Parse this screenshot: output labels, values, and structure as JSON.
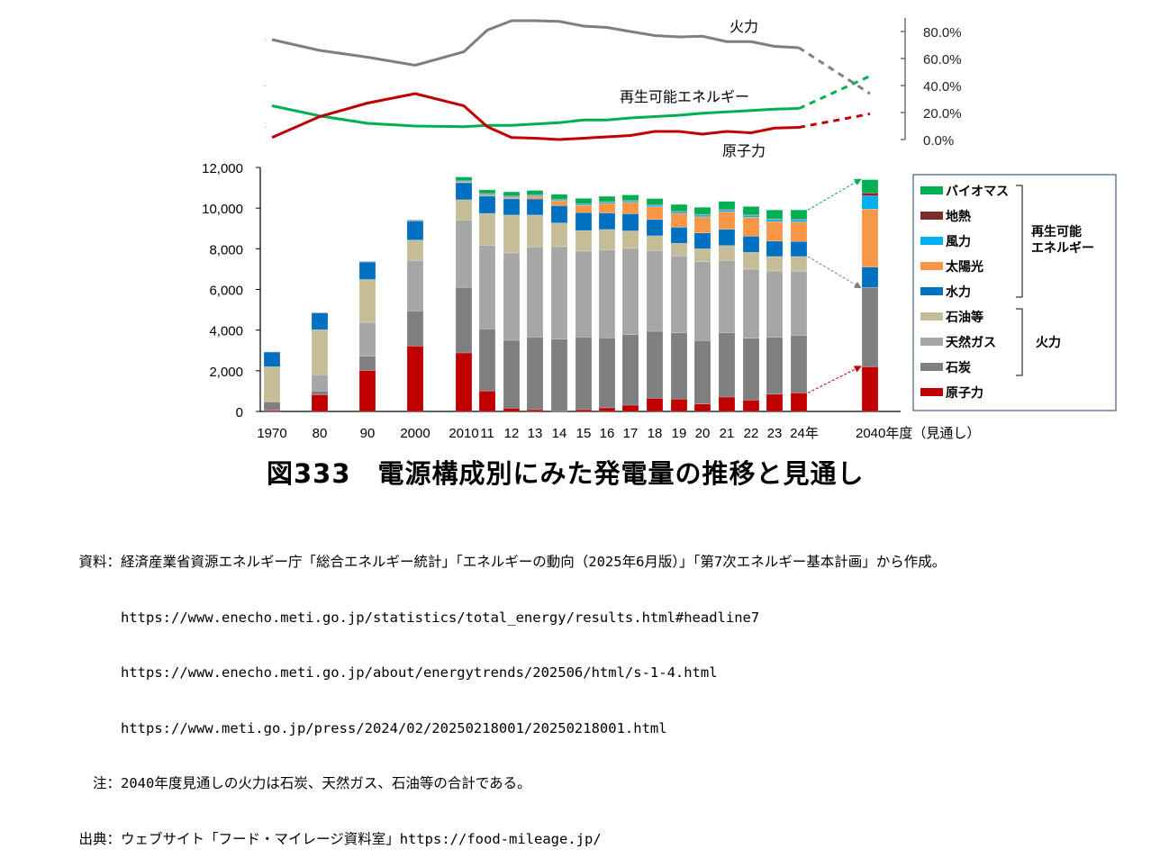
{
  "chart_data": [
    {
      "type": "line",
      "title": "",
      "yaxis_side": "right",
      "ylim": [
        0,
        80
      ],
      "ytick_labels": [
        "0.0%",
        "20.0%",
        "40.0%",
        "60.0%",
        "80.0%"
      ],
      "ytick_values": [
        0,
        20,
        40,
        60,
        80
      ],
      "x": [
        "1970",
        "80",
        "90",
        "2000",
        "2010",
        "11",
        "12",
        "13",
        "14",
        "15",
        "16",
        "17",
        "18",
        "19",
        "20",
        "21",
        "22",
        "23",
        "24",
        "2040"
      ],
      "projection_from_index": 18,
      "series": [
        {
          "name": "火力",
          "color": "#7f7f7f",
          "values": [
            74,
            66,
            61,
            55,
            65,
            81,
            88,
            88,
            87.5,
            84,
            83,
            80,
            77,
            76,
            76.5,
            72.5,
            72.5,
            69,
            68,
            34
          ]
        },
        {
          "name": "再生可能エネルギー",
          "color": "#00b050",
          "values": [
            25,
            17.5,
            12,
            10,
            9.5,
            10.5,
            10.5,
            11.5,
            12.5,
            14.5,
            14.5,
            16,
            17,
            18,
            19.5,
            20.5,
            21.5,
            22.5,
            23,
            47
          ]
        },
        {
          "name": "原子力",
          "color": "#c00000",
          "values": [
            1.5,
            17,
            27,
            34,
            25,
            9.5,
            1.5,
            1,
            0,
            1,
            2,
            3,
            6,
            6,
            4,
            6,
            5,
            8.5,
            9,
            19
          ]
        }
      ],
      "annotations": [
        {
          "text": "火力",
          "series": "火力"
        },
        {
          "text": "再生可能エネルギー",
          "series": "再生可能エネルギー"
        },
        {
          "text": "原子力",
          "series": "原子力"
        }
      ]
    },
    {
      "type": "bar",
      "stacked": true,
      "title": "図333　電源構成別にみた発電量の推移と見通し",
      "xlabel": "",
      "ylabel": "",
      "ylim": [
        0,
        12000
      ],
      "ytick_labels": [
        "0",
        "2,000",
        "4,000",
        "6,000",
        "8,000",
        "10,000",
        "12,000"
      ],
      "ytick_values": [
        0,
        2000,
        4000,
        6000,
        8000,
        10000,
        12000
      ],
      "categories": [
        "1970",
        "80",
        "90",
        "2000",
        "2010",
        "11",
        "12",
        "13",
        "14",
        "15",
        "16",
        "17",
        "18",
        "19",
        "20",
        "21",
        "22",
        "23",
        "24年",
        "2040年度（見通し）"
      ],
      "series": [
        {
          "name": "原子力",
          "color": "#c00000",
          "values": [
            50,
            820,
            2020,
            3220,
            2880,
            1010,
            160,
            90,
            0,
            90,
            180,
            310,
            650,
            610,
            370,
            710,
            560,
            850,
            910,
            2200
          ]
        },
        {
          "name": "石炭",
          "color": "#7f7f7f",
          "values": [
            420,
            190,
            700,
            1720,
            3220,
            3050,
            3340,
            3570,
            3560,
            3570,
            3440,
            3470,
            3290,
            3260,
            3120,
            3160,
            3040,
            2800,
            2830,
            3900
          ]
        },
        {
          "name": "天然ガス",
          "color": "#a6a6a6",
          "values": [
            0,
            800,
            1660,
            2480,
            3310,
            4110,
            4300,
            4440,
            4550,
            4230,
            4330,
            4240,
            3980,
            3780,
            3880,
            3560,
            3400,
            3260,
            3160,
            0
          ]
        },
        {
          "name": "石油等",
          "color": "#c4bd97",
          "values": [
            1730,
            2210,
            2110,
            1010,
            1000,
            1570,
            1860,
            1560,
            1160,
            1010,
            1000,
            860,
            720,
            620,
            630,
            730,
            830,
            710,
            720,
            0
          ]
        },
        {
          "name": "水力",
          "color": "#0070c0",
          "values": [
            720,
            820,
            860,
            940,
            840,
            850,
            800,
            790,
            850,
            880,
            810,
            840,
            800,
            790,
            780,
            800,
            790,
            760,
            740,
            1000
          ]
        },
        {
          "name": "太陽光",
          "color": "#f79646",
          "values": [
            0,
            0,
            0,
            0,
            40,
            50,
            70,
            130,
            240,
            350,
            470,
            560,
            630,
            680,
            790,
            860,
            930,
            960,
            960,
            2850
          ]
        },
        {
          "name": "風力",
          "color": "#00b0f0",
          "values": [
            0,
            0,
            0,
            10,
            40,
            50,
            50,
            50,
            50,
            60,
            60,
            70,
            70,
            80,
            90,
            90,
            90,
            100,
            110,
            650
          ]
        },
        {
          "name": "地熱",
          "color": "#7b2c2c",
          "values": [
            10,
            20,
            20,
            30,
            30,
            30,
            30,
            30,
            30,
            30,
            30,
            30,
            30,
            30,
            30,
            30,
            30,
            30,
            30,
            150
          ]
        },
        {
          "name": "バイオマス",
          "color": "#00b050",
          "values": [
            0,
            0,
            0,
            0,
            170,
            180,
            190,
            210,
            240,
            260,
            260,
            270,
            300,
            330,
            350,
            390,
            410,
            440,
            450,
            650
          ]
        }
      ],
      "legend": {
        "placement": "right",
        "items": [
          "バイオマス",
          "地熱",
          "風力",
          "太陽光",
          "水力",
          "石油等",
          "天然ガス",
          "石炭",
          "原子力"
        ],
        "groups": [
          {
            "label": "再生可能\nエネルギー",
            "members": [
              "バイオマス",
              "地熱",
              "風力",
              "太陽光",
              "水力"
            ]
          },
          {
            "label": "火力",
            "members": [
              "石油等",
              "天然ガス",
              "石炭"
            ]
          }
        ]
      },
      "arrows": [
        {
          "from": "24年 バイオマス top",
          "to": "2040 total top",
          "color": "#00b050"
        },
        {
          "from": "24年 石油等 top",
          "to": "2040 石炭(火力) top",
          "color": "#7f7f7f"
        },
        {
          "from": "24年 原子力 top",
          "to": "2040 原子力 top",
          "color": "#c00000"
        }
      ]
    }
  ],
  "figure": {
    "title": "図333　電源構成別にみた発電量の推移と見通し"
  },
  "notes": {
    "source_label": "資料：",
    "source_text": "経済産業省資源エネルギー庁「総合エネルギー統計」「エネルギーの動向（2025年6月版）」「第7次エネルギー基本計画」から作成。",
    "urls": [
      "https://www.enecho.meti.go.jp/statistics/total_energy/results.html#headline7",
      "https://www.enecho.meti.go.jp/about/energytrends/202506/html/s-1-4.html",
      "https://www.meti.go.jp/press/2024/02/20250218001/20250218001.html"
    ],
    "note_label": "注：",
    "note_text": "2040年度見通しの火力は石炭、天然ガス、石油等の合計である。",
    "credit_label": "出典：",
    "credit_text": "ウェブサイト「フード・マイレージ資料室」https://food-mileage.jp/"
  }
}
